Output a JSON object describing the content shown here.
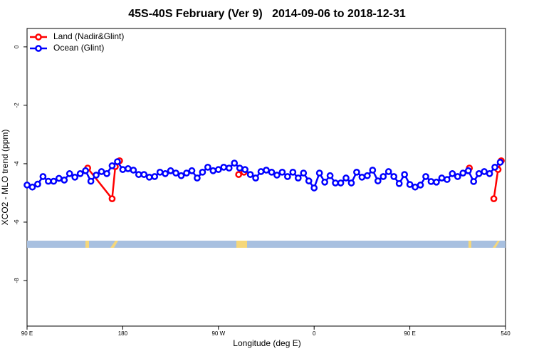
{
  "chart_data": {
    "type": "line",
    "title": "45S-40S February (Ver 9)   2014-09-06 to 2018-12-31",
    "xlabel": "Longitude (deg E)",
    "ylabel": "XCO2 - MLO trend (ppm)",
    "xlim": [
      90,
      540
    ],
    "ylim": [
      -9.56,
      0.63
    ],
    "xticks": [
      {
        "value": 90,
        "label": "90 E"
      },
      180,
      {
        "value": 270,
        "label": "90 W"
      },
      {
        "value": 360,
        "label": "0"
      },
      {
        "value": 450,
        "label": "90 E"
      },
      540
    ],
    "yticks": [
      0,
      -2,
      -4,
      -6,
      -8
    ],
    "legend": "top-left",
    "series": [
      {
        "name": "Land (Nadir&Glint)",
        "color": "#ff0000",
        "x": [
          147,
          170,
          173,
          177,
          230,
          289,
          294,
          400,
          506,
          515,
          529,
          533,
          536
        ],
        "values": [
          -4.15,
          -5.2,
          -4.1,
          -3.9,
          null,
          -4.37,
          -4.29,
          null,
          -4.15,
          null,
          -5.2,
          -4.2,
          -3.9
        ]
      },
      {
        "name": "Ocean (Glint)",
        "color": "#0000ff",
        "x": [
          90,
          95,
          100,
          105,
          110,
          115,
          120,
          125,
          130,
          135,
          140,
          145,
          150,
          155,
          160,
          165,
          170,
          175,
          180,
          185,
          190,
          195,
          200,
          205,
          210,
          215,
          220,
          225,
          230,
          235,
          240,
          245,
          250,
          255,
          260,
          265,
          270,
          275,
          280,
          285,
          290,
          295,
          300,
          305,
          310,
          315,
          320,
          325,
          330,
          335,
          340,
          345,
          350,
          355,
          360,
          365,
          370,
          375,
          380,
          385,
          390,
          395,
          400,
          405,
          410,
          415,
          420,
          425,
          430,
          435,
          440,
          445,
          450,
          455,
          460,
          465,
          470,
          475,
          480,
          485,
          490,
          495,
          500,
          505,
          510,
          515,
          520,
          525,
          530,
          535
        ],
        "values": [
          -4.73,
          -4.8,
          -4.7,
          -4.44,
          -4.6,
          -4.6,
          -4.5,
          -4.56,
          -4.34,
          -4.46,
          -4.34,
          -4.24,
          -4.6,
          -4.39,
          -4.27,
          -4.34,
          -4.07,
          -3.93,
          -4.2,
          -4.17,
          -4.22,
          -4.37,
          -4.37,
          -4.46,
          -4.44,
          -4.29,
          -4.34,
          -4.24,
          -4.32,
          -4.41,
          -4.32,
          -4.24,
          -4.49,
          -4.29,
          -4.12,
          -4.24,
          -4.2,
          -4.12,
          -4.15,
          -3.98,
          -4.15,
          -4.2,
          -4.37,
          -4.49,
          -4.27,
          -4.22,
          -4.29,
          -4.39,
          -4.29,
          -4.44,
          -4.29,
          -4.49,
          -4.32,
          -4.59,
          -4.83,
          -4.32,
          -4.63,
          -4.41,
          -4.66,
          -4.66,
          -4.49,
          -4.66,
          -4.29,
          -4.46,
          -4.41,
          -4.22,
          -4.59,
          -4.44,
          -4.27,
          -4.44,
          -4.68,
          -4.37,
          -4.71,
          -4.8,
          -4.73,
          -4.44,
          -4.61,
          -4.63,
          -4.49,
          -4.54,
          -4.34,
          -4.44,
          -4.32,
          -4.24,
          -4.61,
          -4.34,
          -4.27,
          -4.34,
          -4.12,
          -3.95
        ]
      }
    ]
  }
}
